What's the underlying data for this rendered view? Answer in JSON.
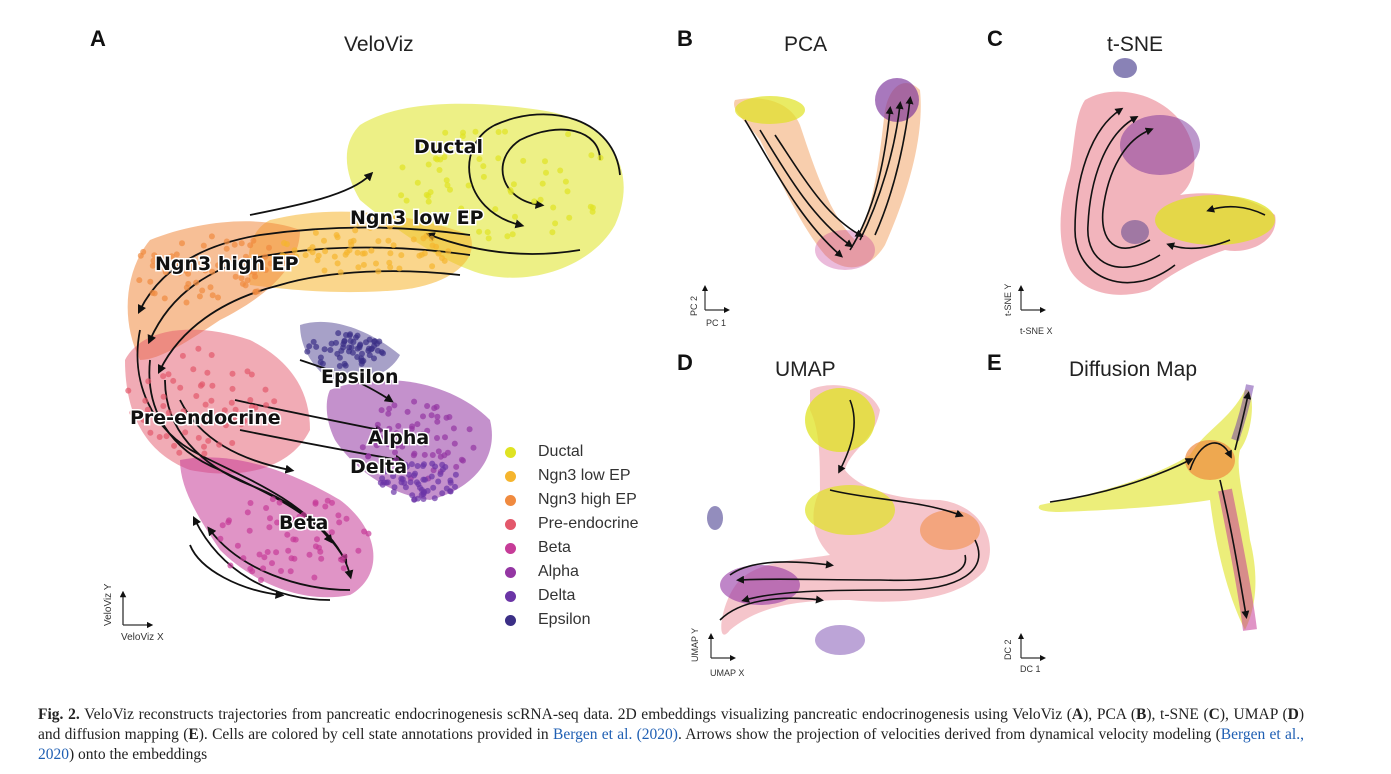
{
  "figure": {
    "panels": [
      {
        "letter": "A",
        "title": "VeloViz",
        "xlabel": "VeloViz X",
        "ylabel": "VeloViz Y"
      },
      {
        "letter": "B",
        "title": "PCA",
        "xlabel": "PC 1",
        "ylabel": "PC 2"
      },
      {
        "letter": "C",
        "title": "t-SNE",
        "xlabel": "t-SNE X",
        "ylabel": "t-SNE Y"
      },
      {
        "letter": "D",
        "title": "UMAP",
        "xlabel": "UMAP X",
        "ylabel": "UMAP Y"
      },
      {
        "letter": "E",
        "title": "Diffusion Map",
        "xlabel": "DC 1",
        "ylabel": "DC 2"
      }
    ],
    "cluster_labels": [
      "Ductal",
      "Ngn3 low EP",
      "Ngn3 high EP",
      "Epsilon",
      "Pre-endocrine",
      "Alpha",
      "Delta",
      "Beta"
    ],
    "legend": [
      {
        "label": "Ductal",
        "color": "#dfe322"
      },
      {
        "label": "Ngn3 low EP",
        "color": "#f5b52e"
      },
      {
        "label": "Ngn3 high EP",
        "color": "#f08a3f"
      },
      {
        "label": "Pre-endocrine",
        "color": "#e3586b"
      },
      {
        "label": "Beta",
        "color": "#c63c98"
      },
      {
        "label": "Alpha",
        "color": "#9436a3"
      },
      {
        "label": "Delta",
        "color": "#6b35a6"
      },
      {
        "label": "Epsilon",
        "color": "#3b2f86"
      }
    ]
  },
  "caption": {
    "figlabel": "Fig. 2.",
    "p1": " VeloViz reconstructs trajectories from pancreatic endocrinogenesis scRNA-seq data. 2D embeddings visualizing pancreatic endocrinogenesis using VeloViz (",
    "a": "A",
    "p2": "), PCA (",
    "b": "B",
    "p3": "), t-SNE (",
    "c": "C",
    "p4": "), UMAP (",
    "d": "D",
    "p5": ") and diffusion mapping (",
    "e": "E",
    "p6": "). Cells are colored by cell state annotations provided in ",
    "ref1": "Bergen et al. (2020)",
    "p7": ". Arrows show the projection of velocities derived from dynamical velocity modeling (",
    "ref2": "Bergen et al., 2020",
    "p8": ") onto the embeddings"
  }
}
